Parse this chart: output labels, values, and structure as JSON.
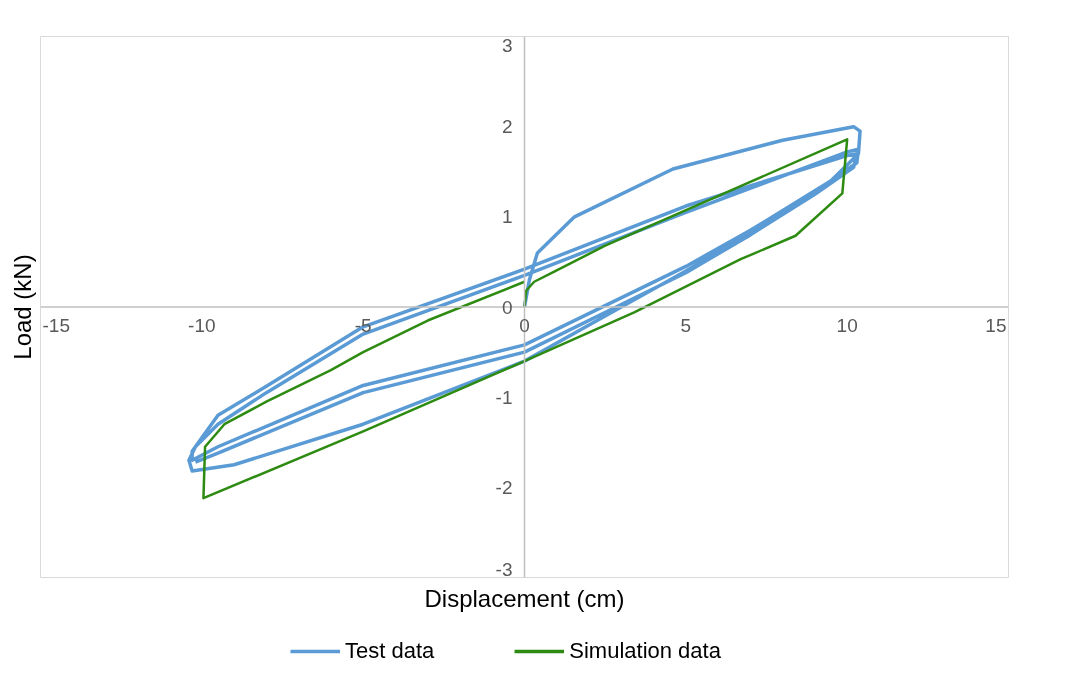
{
  "chart_data": {
    "type": "line",
    "xlabel": "Displacement (cm)",
    "ylabel": "Load (kN)",
    "xlim": [
      -15,
      15
    ],
    "xticks": [
      -15,
      -10,
      -5,
      0,
      5,
      10,
      15
    ],
    "ylim": [
      -3,
      3
    ],
    "yticks": [
      -3,
      -2,
      -1,
      0,
      1,
      2,
      3
    ],
    "grid": false,
    "legend": "bottom",
    "marker": "none",
    "line_style": "solid",
    "series": [
      {
        "name": "Test data",
        "color": "#5b9bd5",
        "x": [
          0,
          0.15,
          0.4,
          1.55,
          4.6,
          8,
          10.2,
          10.4,
          10.35,
          9.5,
          8,
          5,
          2,
          0,
          -5,
          -9,
          -10.3,
          -10.4,
          -10.2,
          -9.5,
          -8,
          -5,
          0,
          5,
          10,
          10.35,
          10.3,
          9.5,
          7,
          5,
          0,
          -5,
          -9.5,
          -10.3,
          -10.3,
          -9.5,
          -8,
          -5,
          0,
          5,
          10,
          10.3,
          10.2,
          9,
          7,
          5,
          0,
          -5,
          -9.5,
          -10.2
        ],
        "values": [
          0,
          0.3,
          0.6,
          1.0,
          1.53,
          1.85,
          2.0,
          1.95,
          1.7,
          1.4,
          1.05,
          0.4,
          -0.2,
          -0.6,
          -1.3,
          -1.75,
          -1.82,
          -1.7,
          -1.55,
          -1.3,
          -0.95,
          -0.3,
          0.35,
          1.05,
          1.72,
          1.75,
          1.6,
          1.4,
          0.85,
          0.45,
          -0.42,
          -0.87,
          -1.55,
          -1.7,
          -1.6,
          -1.2,
          -0.88,
          -0.22,
          0.42,
          1.12,
          1.68,
          1.7,
          1.55,
          1.25,
          0.8,
          0.38,
          -0.5,
          -0.95,
          -1.62,
          -1.72
        ]
      },
      {
        "name": "Simulation data",
        "color": "#2e8b12",
        "x": [
          0,
          0.05,
          0.3,
          0.8,
          2.5,
          4.6,
          10,
          9.85,
          8.4,
          6.7,
          3.4,
          0,
          -5,
          -9.95,
          -9.9,
          -9.3,
          -8,
          -6,
          -5,
          -3,
          0
        ],
        "values": [
          0,
          0.18,
          0.28,
          0.37,
          0.68,
          1.01,
          1.86,
          1.26,
          0.79,
          0.53,
          -0.06,
          -0.6,
          -1.38,
          -2.12,
          -1.55,
          -1.3,
          -1.05,
          -0.7,
          -0.5,
          -0.15,
          0.28
        ]
      }
    ]
  }
}
